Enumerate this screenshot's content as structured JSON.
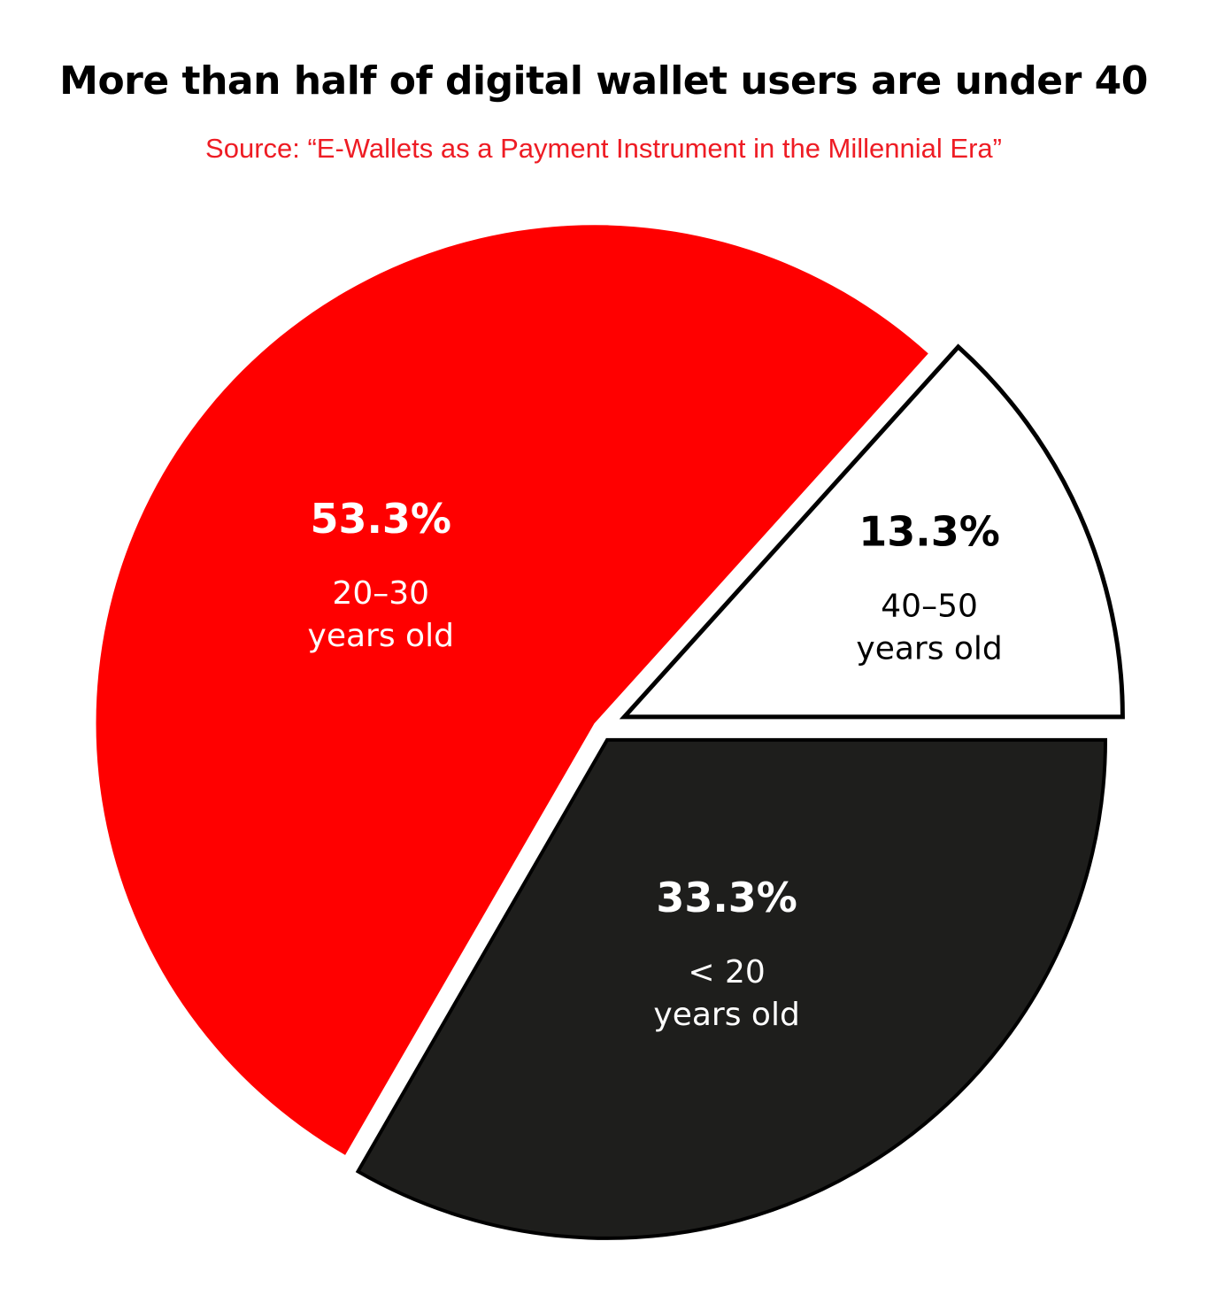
{
  "chart_data": {
    "type": "pie",
    "title": "More than half of digital wallet users are under 40",
    "subtitle": "Source: “E-Wallets as a Payment Instrument in the Millennial Era”",
    "slices": [
      {
        "label": "40–50",
        "sublabel": "years old",
        "value": 13.3,
        "display": "13.3%",
        "color": "#ffffff",
        "text_color": "#000000"
      },
      {
        "label": "20–30",
        "sublabel": "years old",
        "value": 53.3,
        "display": "53.3%",
        "color": "#ff0000",
        "text_color": "#ffffff"
      },
      {
        "label": "< 20",
        "sublabel": "years old",
        "value": 33.3,
        "display": "33.3%",
        "color": "#1e1e1c",
        "text_color": "#ffffff"
      }
    ]
  }
}
